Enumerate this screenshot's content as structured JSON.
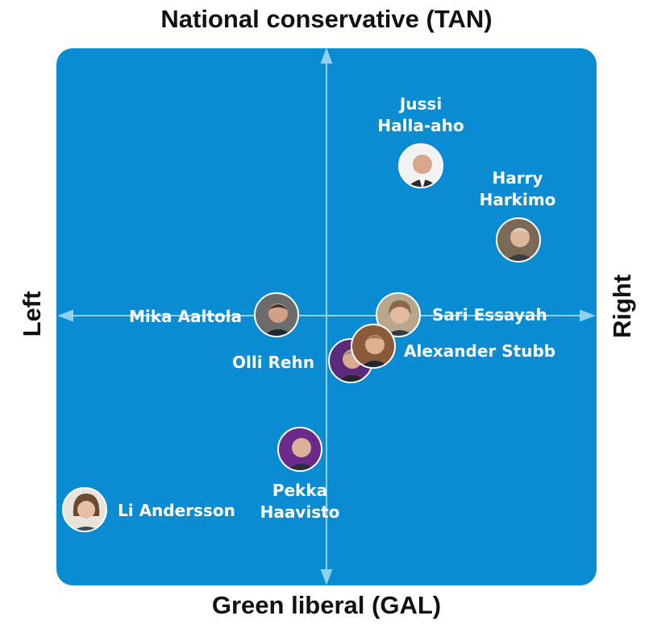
{
  "axes": {
    "top": "National conservative (TAN)",
    "bottom": "Green liberal (GAL)",
    "left": "Left",
    "right": "Right"
  },
  "colors": {
    "panel": "#0a8cd2",
    "axis": "#8fd0f3",
    "label": "#ffffff"
  },
  "people": [
    {
      "name_lines": [
        "Jussi",
        "Halla-aho"
      ],
      "frame": "#f2f2f2"
    },
    {
      "name_lines": [
        "Harry",
        "Harkimo"
      ],
      "frame": "#7a6a55"
    },
    {
      "name_lines": [
        "Mika Aaltola"
      ],
      "frame": "#6b6b6b"
    },
    {
      "name_lines": [
        "Sari Essayah"
      ],
      "frame": "#b9a68e"
    },
    {
      "name_lines": [
        "Alexander Stubb"
      ],
      "frame": "#8a5a3a"
    },
    {
      "name_lines": [
        "Olli Rehn"
      ],
      "frame": "#5b2a7a"
    },
    {
      "name_lines": [
        "Pekka",
        "Haavisto"
      ],
      "frame": "#6b2a8a"
    },
    {
      "name_lines": [
        "Li Andersson"
      ],
      "frame": "#e8e4dc"
    }
  ]
}
